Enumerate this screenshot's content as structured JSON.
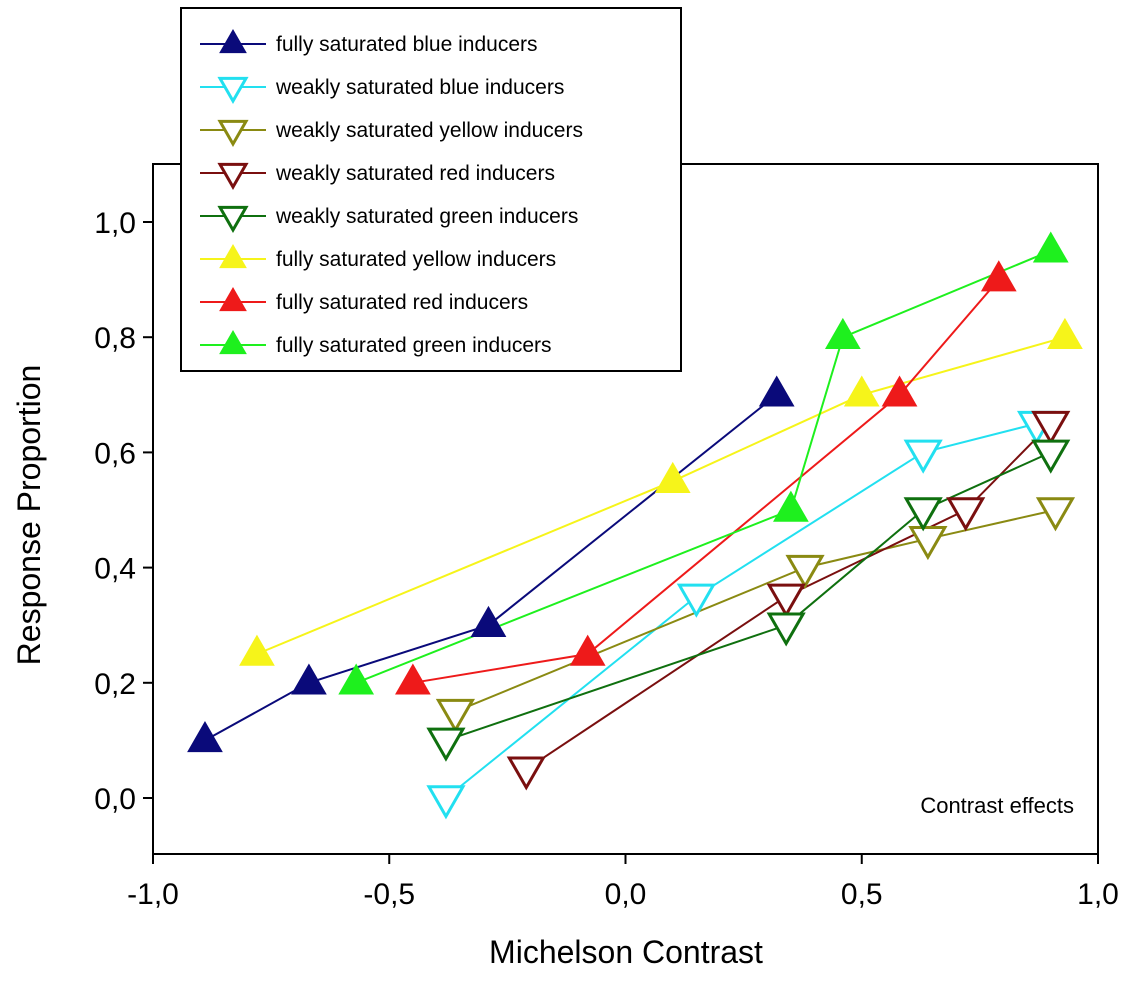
{
  "chart_data": {
    "type": "line",
    "title": "",
    "xlabel": "Michelson Contrast",
    "ylabel": "Response Proportion",
    "xlim": [
      -1.0,
      1.0
    ],
    "ylim": [
      -0.1,
      1.1
    ],
    "xticks": [
      -1.0,
      -0.5,
      0.0,
      0.5,
      1.0
    ],
    "xtick_labels": [
      "-1,0",
      "-0,5",
      "0,0",
      "0,5",
      "1,0"
    ],
    "yticks": [
      0.0,
      0.2,
      0.4,
      0.6,
      0.8,
      1.0
    ],
    "ytick_labels": [
      "0,0",
      "0,2",
      "0,4",
      "0,6",
      "0,8",
      "1,0"
    ],
    "grid": false,
    "legend_position": "top-left",
    "annotation": "Contrast effects",
    "series": [
      {
        "name": "fully saturated blue inducers",
        "color": "#0a0a7a",
        "marker": "triangle-up-filled",
        "x": [
          -0.89,
          -0.67,
          -0.29,
          0.32
        ],
        "y": [
          0.1,
          0.2,
          0.3,
          0.7
        ]
      },
      {
        "name": "weakly saturated blue inducers",
        "color": "#22e0f0",
        "marker": "triangle-down-open",
        "x": [
          -0.38,
          0.15,
          0.63,
          0.87
        ],
        "y": [
          0.0,
          0.35,
          0.6,
          0.65
        ]
      },
      {
        "name": "weakly saturated yellow inducers",
        "color": "#8a8a12",
        "marker": "triangle-down-open",
        "x": [
          -0.36,
          0.38,
          0.64,
          0.91
        ],
        "y": [
          0.15,
          0.4,
          0.45,
          0.5
        ]
      },
      {
        "name": "weakly saturated red inducers",
        "color": "#7a0f0f",
        "marker": "triangle-down-open",
        "x": [
          -0.21,
          0.34,
          0.72,
          0.9
        ],
        "y": [
          0.05,
          0.35,
          0.5,
          0.65
        ]
      },
      {
        "name": "weakly saturated green inducers",
        "color": "#0f700f",
        "marker": "triangle-down-open",
        "x": [
          -0.38,
          0.34,
          0.63,
          0.9
        ],
        "y": [
          0.1,
          0.3,
          0.5,
          0.6
        ]
      },
      {
        "name": "fully saturated yellow inducers",
        "color": "#f6f41a",
        "marker": "triangle-up-filled",
        "x": [
          -0.78,
          0.1,
          0.5,
          0.93
        ],
        "y": [
          0.25,
          0.55,
          0.7,
          0.8
        ]
      },
      {
        "name": "fully saturated red inducers",
        "color": "#ee1a1a",
        "marker": "triangle-up-filled",
        "x": [
          -0.45,
          -0.08,
          0.58,
          0.79
        ],
        "y": [
          0.2,
          0.25,
          0.7,
          0.9
        ]
      },
      {
        "name": "fully saturated green inducers",
        "color": "#1ef01e",
        "marker": "triangle-up-filled",
        "x": [
          -0.57,
          0.35,
          0.46,
          0.9
        ],
        "y": [
          0.2,
          0.5,
          0.8,
          0.95
        ]
      }
    ]
  }
}
